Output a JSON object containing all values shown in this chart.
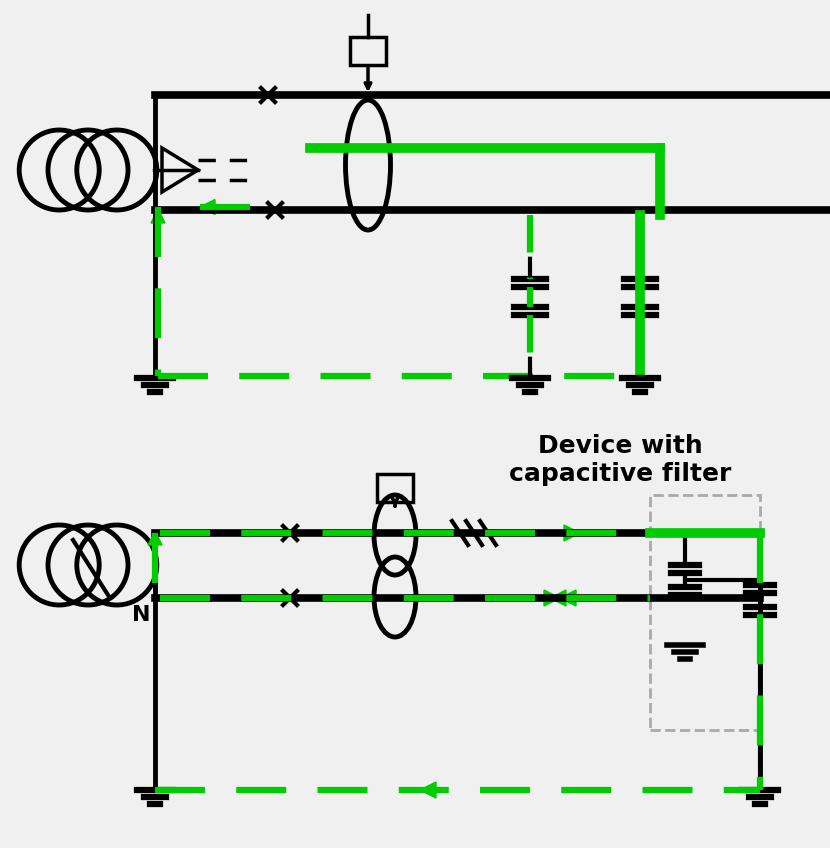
{
  "bg_color": "#f0f0f0",
  "black": "#000000",
  "green": "#00cc00",
  "gray": "#aaaaaa",
  "lw_main": 3.5,
  "lw_thick": 5.5,
  "lw_green": 4.5,
  "lw_green_thick": 7.0,
  "label_device": "Device with\ncapacitive filter",
  "label_N": "N"
}
